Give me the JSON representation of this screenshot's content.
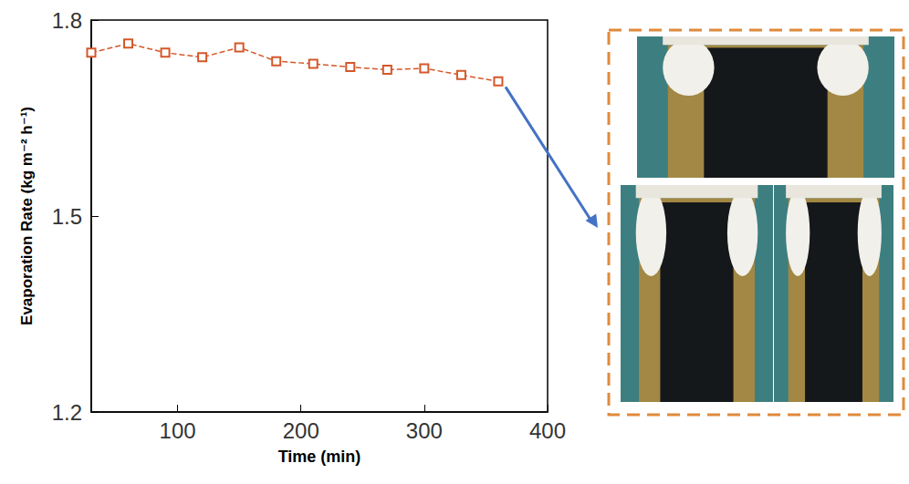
{
  "chart_data": {
    "type": "line",
    "x_label": "Time (min)",
    "y_label": "Evaporation Rate (kg m⁻² h⁻¹)",
    "x": [
      30,
      60,
      90,
      120,
      150,
      180,
      210,
      240,
      270,
      300,
      330,
      360
    ],
    "values": [
      1.75,
      1.764,
      1.75,
      1.743,
      1.758,
      1.737,
      1.733,
      1.728,
      1.724,
      1.726,
      1.716,
      1.706
    ],
    "color": "#d4582a",
    "marker": "square",
    "line_style": "dashed",
    "xlim": [
      30,
      400
    ],
    "xticks": [
      100,
      200,
      300,
      400
    ],
    "ylim": [
      1.2,
      1.8
    ],
    "yticks": [
      1.2,
      1.5,
      1.8
    ],
    "grid": false
  }
}
